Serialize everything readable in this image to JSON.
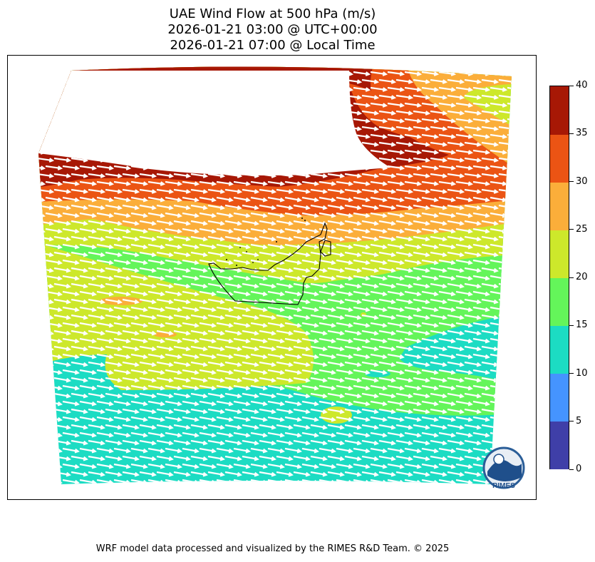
{
  "title": {
    "line1": "UAE Wind Flow at 500 hPa (m/s)",
    "line2": "2026-01-21 03:00 @ UTC+00:00",
    "line3": "2026-01-21 07:00 @ Local Time"
  },
  "colorbar": {
    "ticks": [
      "0",
      "5",
      "10",
      "15",
      "20",
      "25",
      "30",
      "35",
      "40"
    ],
    "colors": [
      "#3f3fa8",
      "#4594ff",
      "#1cdcc3",
      "#64f55a",
      "#cde82b",
      "#fbae3a",
      "#eb5414",
      "#a71805"
    ]
  },
  "logo": {
    "text": "RIMES"
  },
  "credit": "WRF model data processed and visualized by the RIMES R&D Team. © 2025"
}
